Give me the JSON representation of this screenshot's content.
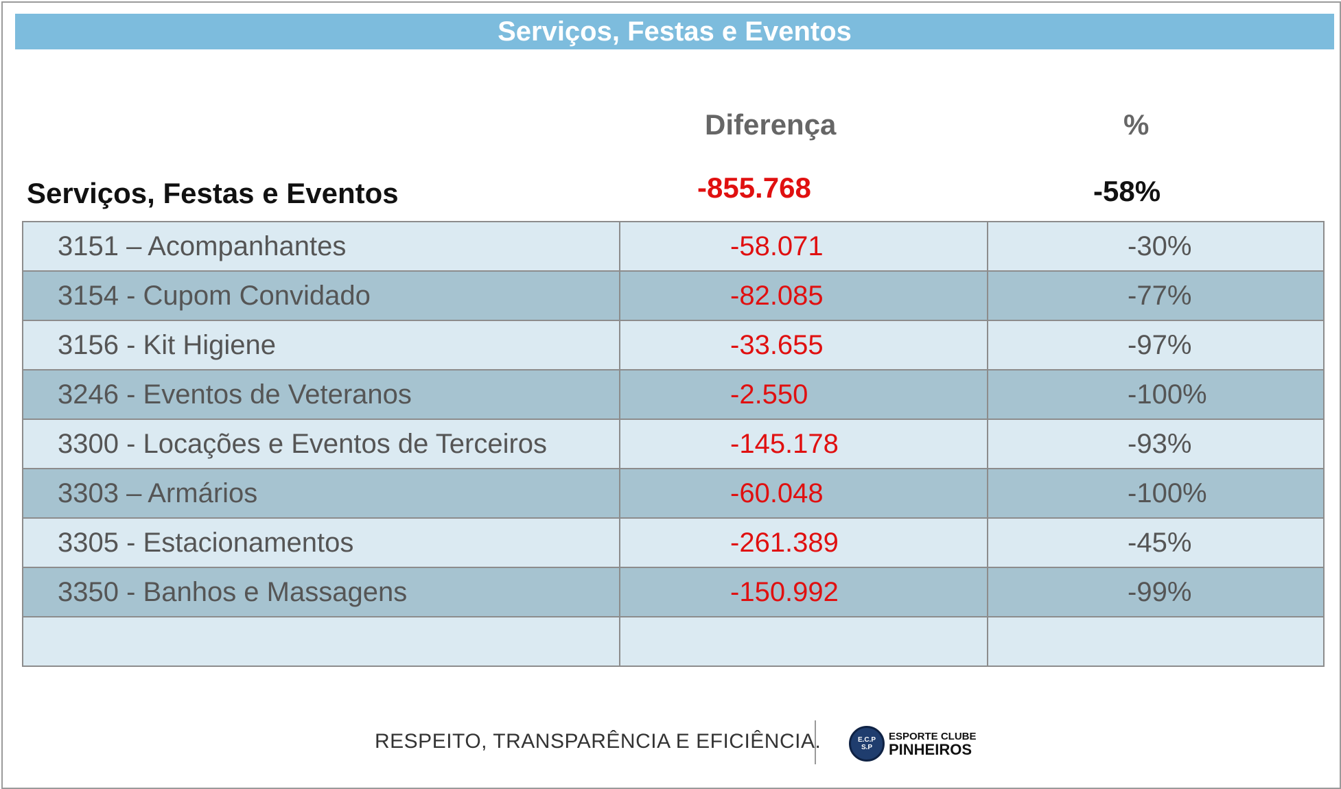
{
  "header": {
    "title": "Serviços, Festas e Eventos"
  },
  "columns": {
    "diff": "Diferença",
    "pct": "%"
  },
  "summary": {
    "label": "Serviços, Festas e Eventos",
    "diff": "-855.768",
    "pct": "-58%"
  },
  "rows": [
    {
      "label": "3151 – Acompanhantes",
      "diff": "-58.071",
      "pct": "-30%"
    },
    {
      "label": "3154 - Cupom Convidado",
      "diff": "-82.085",
      "pct": "-77%"
    },
    {
      "label": "3156 - Kit Higiene",
      "diff": "-33.655",
      "pct": "-97%"
    },
    {
      "label": "3246 - Eventos de Veteranos",
      "diff": "-2.550",
      "pct": "-100%"
    },
    {
      "label": "3300 - Locações e Eventos de Terceiros",
      "diff": "-145.178",
      "pct": "-93%"
    },
    {
      "label": "3303 – Armários",
      "diff": "-60.048",
      "pct": "-100%"
    },
    {
      "label": "3305 - Estacionamentos",
      "diff": "-261.389",
      "pct": "-45%"
    },
    {
      "label": "3350 - Banhos e Massagens",
      "diff": "-150.992",
      "pct": "-99%"
    },
    {
      "label": "",
      "diff": "",
      "pct": ""
    }
  ],
  "footer": {
    "slogan": "RESPEITO, TRANSPARÊNCIA E EFICIÊNCIA.",
    "logo_top": "ESPORTE CLUBE",
    "logo_bottom": "PINHEIROS",
    "logo_badge_top": "E.C.P",
    "logo_badge_bottom": "S.P"
  },
  "colors": {
    "banner": "#7dbcdd",
    "row_light": "#dbeaf2",
    "row_dark": "#a6c3d0",
    "negative": "#e01010"
  }
}
